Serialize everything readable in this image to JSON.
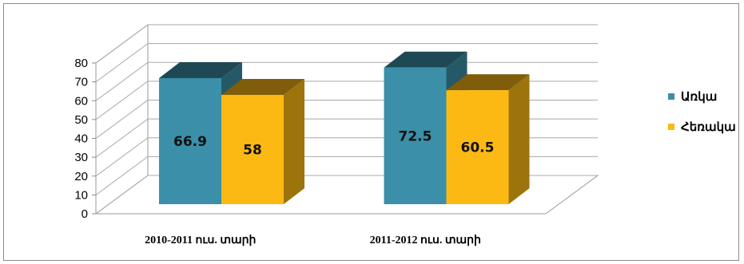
{
  "chart_data": {
    "type": "bar",
    "title": "",
    "xlabel": "",
    "ylabel": "",
    "categories": [
      "2010-2011 ուս. տարի",
      "2011-2012 ուս. տարի"
    ],
    "series": [
      {
        "name": "Առկա",
        "values": [
          66.9,
          72.5
        ],
        "color": "#3b8fa8"
      },
      {
        "name": "Հեռակա",
        "values": [
          58,
          60.5
        ],
        "color": "#fdb913"
      }
    ],
    "data_labels": [
      [
        "66.9",
        "58"
      ],
      [
        "72.5",
        "60.5"
      ]
    ],
    "ylim": [
      0,
      80
    ],
    "yticks": [
      0,
      10,
      20,
      30,
      40,
      50,
      60,
      70,
      80
    ],
    "grid": true,
    "legend_position": "right",
    "style": "3d-clustered-column"
  }
}
